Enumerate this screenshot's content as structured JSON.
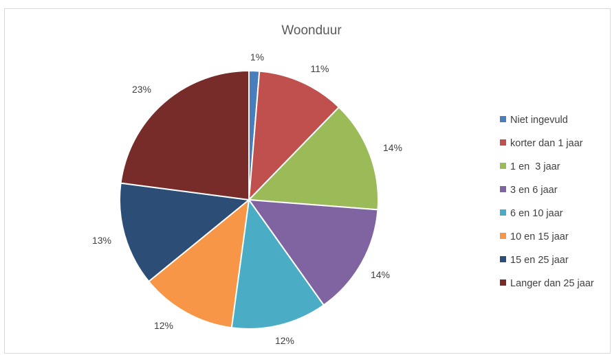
{
  "chart_data": {
    "type": "pie",
    "title": "Woonduur",
    "categories": [
      "Niet ingevuld",
      "korter dan 1 jaar",
      "1 en  3 jaar",
      "3 en 6 jaar",
      "6 en 10 jaar",
      "10 en 15 jaar",
      "15 en 25 jaar",
      "Langer dan 25 jaar"
    ],
    "values": [
      1.3,
      11,
      14,
      14,
      12,
      12,
      13,
      23
    ],
    "data_labels": [
      "1%",
      "11%",
      "14%",
      "14%",
      "12%",
      "12%",
      "13%",
      "23%"
    ],
    "colors": [
      "#4a7ebb",
      "#c0504d",
      "#9bbb59",
      "#8064a2",
      "#4bacc6",
      "#f79646",
      "#2c4d75",
      "#772c2a"
    ],
    "legend_position": "right"
  }
}
